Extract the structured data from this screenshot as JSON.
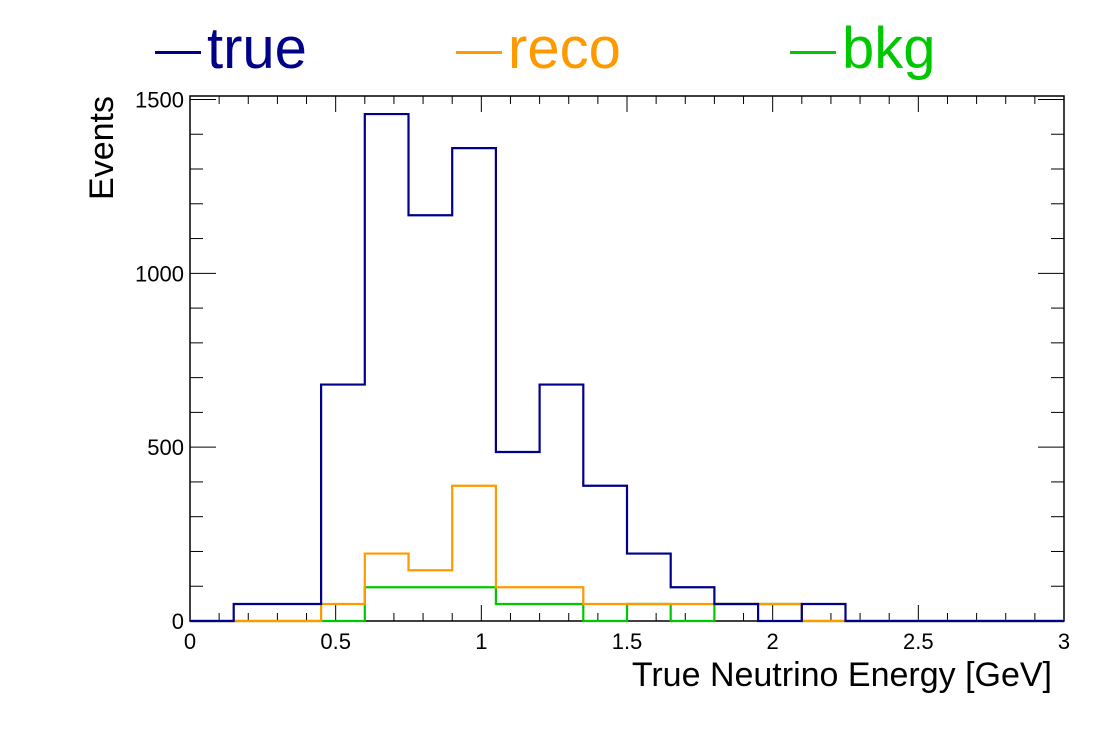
{
  "legend": {
    "items": [
      {
        "label": "true",
        "color": "#00008b"
      },
      {
        "label": "reco",
        "color": "#ff9900"
      },
      {
        "label": "bkg",
        "color": "#00c800"
      }
    ]
  },
  "chart_data": {
    "type": "histogram",
    "title": "",
    "xlabel": "True Neutrino Energy [GeV]",
    "ylabel": "Events",
    "xlim": [
      0,
      3
    ],
    "ylim": [
      0,
      1510
    ],
    "bin_width": 0.15,
    "bin_edges": [
      0,
      0.15,
      0.3,
      0.45,
      0.6,
      0.75,
      0.9,
      1.05,
      1.2,
      1.35,
      1.5,
      1.65,
      1.8,
      1.95,
      2.1,
      2.25,
      2.4,
      2.55,
      2.7,
      2.85,
      3.0
    ],
    "x_ticks": [
      {
        "value": 0,
        "label": "0"
      },
      {
        "value": 0.5,
        "label": "0.5"
      },
      {
        "value": 1,
        "label": "1"
      },
      {
        "value": 1.5,
        "label": "1.5"
      },
      {
        "value": 2,
        "label": "2"
      },
      {
        "value": 2.5,
        "label": "2.5"
      },
      {
        "value": 3,
        "label": "3"
      }
    ],
    "y_ticks": [
      {
        "value": 0,
        "label": "0"
      },
      {
        "value": 500,
        "label": "500"
      },
      {
        "value": 1000,
        "label": "1000"
      },
      {
        "value": 1500,
        "label": "1500"
      }
    ],
    "series": [
      {
        "name": "true",
        "color": "#00008b",
        "values": [
          0,
          49,
          49,
          680,
          1458,
          1167,
          1360,
          486,
          680,
          389,
          194,
          97,
          49,
          0,
          49,
          0,
          0,
          0,
          0,
          0
        ]
      },
      {
        "name": "reco",
        "color": "#ff9900",
        "values": [
          0,
          0,
          0,
          49,
          194,
          146,
          389,
          97,
          97,
          49,
          49,
          49,
          49,
          49,
          0,
          0,
          0,
          0,
          0,
          0
        ]
      },
      {
        "name": "bkg",
        "color": "#00c800",
        "values": [
          0,
          0,
          0,
          0,
          97,
          97,
          97,
          49,
          49,
          0,
          49,
          0,
          49,
          49,
          0,
          0,
          0,
          0,
          0,
          0
        ]
      }
    ],
    "grid": false,
    "legend_position": "top"
  }
}
